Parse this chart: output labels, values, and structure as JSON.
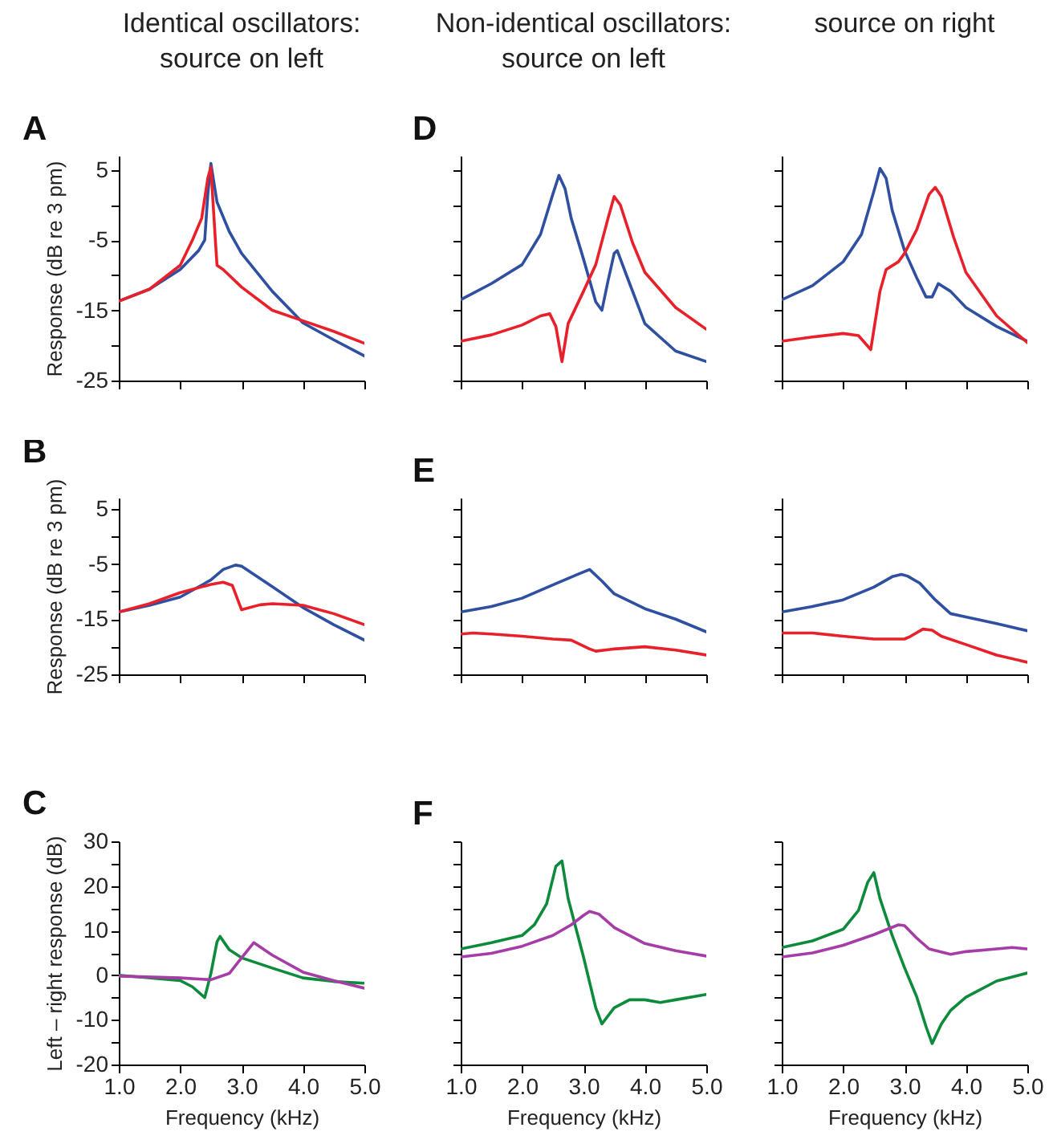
{
  "chart_data": [
    {
      "type": "line",
      "title": "A",
      "annotations": [
        "Identical oscillators:",
        "source on left"
      ],
      "ylabel": "Response (dB re 3 pm)",
      "tick_labels": "y",
      "xlim": [
        1,
        5
      ],
      "xticks": [
        {
          "value": 1,
          "label": null
        },
        {
          "value": 2,
          "label": null
        },
        {
          "value": 3,
          "label": null
        },
        {
          "value": 4,
          "label": null
        },
        {
          "value": 5,
          "label": null
        }
      ],
      "ylim": [
        -25,
        7
      ],
      "yticks": [
        5,
        {
          "value": 0,
          "label": null
        },
        -5,
        {
          "value": -10,
          "label": null
        },
        -15,
        {
          "value": -20,
          "label": null
        },
        -25
      ],
      "series": [
        {
          "color": "#2f4fa0",
          "x": [
            1,
            1.5,
            2,
            2.3,
            2.4,
            2.45,
            2.5,
            2.6,
            2.8,
            3,
            3.5,
            4,
            4.5,
            5
          ],
          "values": [
            -13.7,
            -12,
            -9.2,
            -6.5,
            -5,
            1.5,
            5.9,
            0.4,
            -3.8,
            -6.9,
            -12.3,
            -16.8,
            -19.2,
            -21.5
          ]
        },
        {
          "color": "#e8202a",
          "x": [
            1,
            1.5,
            2,
            2.2,
            2.35,
            2.45,
            2.5,
            2.57,
            2.6,
            2.7,
            3,
            3.5,
            4,
            4.5,
            5
          ],
          "values": [
            -13.7,
            -12,
            -8.6,
            -5,
            -1.9,
            3.8,
            5.4,
            -4.6,
            -8.6,
            -9.2,
            -11.7,
            -15,
            -16.5,
            -18,
            -19.7
          ]
        }
      ]
    },
    {
      "type": "line",
      "title": "D",
      "annotations": [
        "Non-identical oscillators:",
        "source on left"
      ],
      "tick_labels": false,
      "xlim": [
        1,
        5
      ],
      "xticks": [
        {
          "value": 1,
          "label": null
        },
        {
          "value": 2,
          "label": null
        },
        {
          "value": 3,
          "label": null
        },
        {
          "value": 4,
          "label": null
        },
        {
          "value": 5,
          "label": null
        }
      ],
      "ylim": [
        -25,
        7
      ],
      "yticks": [
        {
          "value": 5,
          "label": null
        },
        {
          "value": 0,
          "label": null
        },
        {
          "value": -5,
          "label": null
        },
        {
          "value": -10,
          "label": null
        },
        {
          "value": -15,
          "label": null
        },
        {
          "value": -20,
          "label": null
        },
        {
          "value": -25,
          "label": null
        }
      ],
      "series": [
        {
          "color": "#2f4fa0",
          "x": [
            1,
            1.5,
            2,
            2.3,
            2.5,
            2.6,
            2.7,
            2.8,
            3,
            3.2,
            3.3,
            3.4,
            3.5,
            3.55,
            3.7,
            4,
            4.5,
            5
          ],
          "values": [
            -13.5,
            -11.2,
            -8.5,
            -4.2,
            1.5,
            4.2,
            2.3,
            -1.9,
            -7.7,
            -13.8,
            -15,
            -10.8,
            -6.9,
            -6.5,
            -10,
            -16.9,
            -20.8,
            -22.3
          ]
        },
        {
          "color": "#e8202a",
          "x": [
            1,
            1.5,
            2,
            2.3,
            2.45,
            2.55,
            2.65,
            2.75,
            3,
            3.2,
            3.4,
            3.5,
            3.6,
            3.8,
            4,
            4.5,
            5
          ],
          "values": [
            -19.4,
            -18.5,
            -17.1,
            -15.8,
            -15.5,
            -17.3,
            -22.3,
            -16.9,
            -12.3,
            -8.5,
            -1.9,
            1.2,
            0,
            -5.4,
            -9.6,
            -14.6,
            -17.7
          ]
        }
      ]
    },
    {
      "type": "line",
      "annotations": [
        "source on right"
      ],
      "tick_labels": false,
      "xlim": [
        1,
        5
      ],
      "xticks": [
        {
          "value": 1,
          "label": null
        },
        {
          "value": 2,
          "label": null
        },
        {
          "value": 3,
          "label": null
        },
        {
          "value": 4,
          "label": null
        },
        {
          "value": 5,
          "label": null
        }
      ],
      "ylim": [
        -25,
        7
      ],
      "yticks": [
        {
          "value": 5,
          "label": null
        },
        {
          "value": 0,
          "label": null
        },
        {
          "value": -5,
          "label": null
        },
        {
          "value": -10,
          "label": null
        },
        {
          "value": -15,
          "label": null
        },
        {
          "value": -20,
          "label": null
        },
        {
          "value": -25,
          "label": null
        }
      ],
      "series": [
        {
          "color": "#2f4fa0",
          "x": [
            1,
            1.5,
            2,
            2.3,
            2.5,
            2.6,
            2.7,
            2.8,
            3,
            3.2,
            3.35,
            3.45,
            3.55,
            3.75,
            4,
            4.5,
            5
          ],
          "values": [
            -13.5,
            -11.5,
            -8.1,
            -4.2,
            1.9,
            5.2,
            3.8,
            -0.8,
            -6.5,
            -10.4,
            -13.1,
            -13.1,
            -11.2,
            -12.3,
            -14.6,
            -17.3,
            -19.4
          ]
        },
        {
          "color": "#e8202a",
          "x": [
            1,
            1.5,
            2,
            2.25,
            2.45,
            2.6,
            2.7,
            2.9,
            3,
            3.2,
            3.4,
            3.5,
            3.6,
            3.8,
            4,
            4.5,
            5
          ],
          "values": [
            -19.4,
            -18.8,
            -18.3,
            -18.6,
            -20.6,
            -12.3,
            -9.2,
            -8.1,
            -6.9,
            -3.5,
            1.5,
            2.5,
            1.2,
            -4.6,
            -9.6,
            -15.8,
            -19.6
          ]
        }
      ]
    },
    {
      "type": "line",
      "title": "B",
      "ylabel": "Response (dB re 3 pm)",
      "tick_labels": "y",
      "xlim": [
        1,
        5
      ],
      "xticks": [
        {
          "value": 1,
          "label": null
        },
        {
          "value": 2,
          "label": null
        },
        {
          "value": 3,
          "label": null
        },
        {
          "value": 4,
          "label": null
        },
        {
          "value": 5,
          "label": null
        }
      ],
      "ylim": [
        -25,
        7
      ],
      "yticks": [
        5,
        {
          "value": 0,
          "label": null
        },
        -5,
        {
          "value": -10,
          "label": null
        },
        -15,
        {
          "value": -20,
          "label": null
        },
        -25
      ],
      "series": [
        {
          "color": "#2f4fa0",
          "x": [
            1,
            1.5,
            2,
            2.5,
            2.7,
            2.9,
            3,
            3.5,
            4,
            4.5,
            5
          ],
          "values": [
            -13.7,
            -12.5,
            -11,
            -7.9,
            -6,
            -5.2,
            -5.4,
            -9.1,
            -12.9,
            -16,
            -18.8
          ]
        },
        {
          "color": "#e8202a",
          "x": [
            1,
            1.5,
            2,
            2.5,
            2.7,
            2.85,
            3,
            3.3,
            3.5,
            4,
            4.5,
            5
          ],
          "values": [
            -13.7,
            -12.2,
            -10.2,
            -8.7,
            -8.3,
            -8.9,
            -13.3,
            -12.4,
            -12.2,
            -12.5,
            -14,
            -16
          ]
        }
      ]
    },
    {
      "type": "line",
      "title": "E",
      "tick_labels": false,
      "xlim": [
        1,
        5
      ],
      "xticks": [
        {
          "value": 1,
          "label": null
        },
        {
          "value": 2,
          "label": null
        },
        {
          "value": 3,
          "label": null
        },
        {
          "value": 4,
          "label": null
        },
        {
          "value": 5,
          "label": null
        }
      ],
      "ylim": [
        -25,
        7
      ],
      "yticks": [
        {
          "value": 5,
          "label": null
        },
        {
          "value": 0,
          "label": null
        },
        {
          "value": -5,
          "label": null
        },
        {
          "value": -10,
          "label": null
        },
        {
          "value": -15,
          "label": null
        },
        {
          "value": -20,
          "label": null
        },
        {
          "value": -25,
          "label": null
        }
      ],
      "series": [
        {
          "color": "#2f4fa0",
          "x": [
            1,
            1.5,
            2,
            2.5,
            2.9,
            3.1,
            3.3,
            3.5,
            4,
            4.5,
            5
          ],
          "values": [
            -13.7,
            -12.7,
            -11.2,
            -8.8,
            -6.9,
            -6,
            -8.1,
            -10.4,
            -13.1,
            -15,
            -17.3
          ]
        },
        {
          "color": "#e8202a",
          "x": [
            1,
            1.2,
            1.5,
            2,
            2.5,
            2.8,
            3.1,
            3.2,
            3.5,
            4,
            4.5,
            5
          ],
          "values": [
            -17.7,
            -17.5,
            -17.7,
            -18.1,
            -18.6,
            -18.8,
            -20.4,
            -20.8,
            -20.4,
            -20,
            -20.6,
            -21.5
          ]
        }
      ]
    },
    {
      "type": "line",
      "tick_labels": false,
      "xlim": [
        1,
        5
      ],
      "xticks": [
        {
          "value": 1,
          "label": null
        },
        {
          "value": 2,
          "label": null
        },
        {
          "value": 3,
          "label": null
        },
        {
          "value": 4,
          "label": null
        },
        {
          "value": 5,
          "label": null
        }
      ],
      "ylim": [
        -25,
        7
      ],
      "yticks": [
        {
          "value": 5,
          "label": null
        },
        {
          "value": 0,
          "label": null
        },
        {
          "value": -5,
          "label": null
        },
        {
          "value": -10,
          "label": null
        },
        {
          "value": -15,
          "label": null
        },
        {
          "value": -20,
          "label": null
        },
        {
          "value": -25,
          "label": null
        }
      ],
      "series": [
        {
          "color": "#2f4fa0",
          "x": [
            1,
            1.5,
            2,
            2.5,
            2.8,
            2.95,
            3.05,
            3.25,
            3.5,
            3.75,
            4,
            4.5,
            5
          ],
          "values": [
            -13.7,
            -12.7,
            -11.5,
            -9.2,
            -7.3,
            -6.9,
            -7.2,
            -8.5,
            -11.5,
            -14,
            -14.6,
            -15.8,
            -17.1
          ]
        },
        {
          "color": "#e8202a",
          "x": [
            1,
            1.5,
            2,
            2.5,
            3,
            3.1,
            3.3,
            3.45,
            3.6,
            4,
            4.5,
            5
          ],
          "values": [
            -17.5,
            -17.5,
            -18.1,
            -18.6,
            -18.6,
            -18.1,
            -16.8,
            -17,
            -18.1,
            -19.6,
            -21.5,
            -22.8
          ]
        }
      ]
    },
    {
      "type": "line",
      "title": "C",
      "ylabel": "Left – right response (dB)",
      "xlabel": "Frequency (kHz)",
      "xlim": [
        1,
        5
      ],
      "xticks": [
        {
          "value": 1,
          "label": "1.0"
        },
        {
          "value": 2,
          "label": "2.0"
        },
        {
          "value": 3,
          "label": "3.0"
        },
        {
          "value": 4,
          "label": "4.0"
        },
        {
          "value": 5,
          "label": "5.0"
        }
      ],
      "ylim": [
        -20,
        30
      ],
      "yticks": [
        30,
        {
          "value": 25,
          "label": null
        },
        20,
        {
          "value": 15,
          "label": null
        },
        10,
        {
          "value": 5,
          "label": null
        },
        0,
        {
          "value": -5,
          "label": null
        },
        -10,
        {
          "value": -15,
          "label": null
        },
        -20
      ],
      "series": [
        {
          "color": "#0d8a3c",
          "x": [
            1,
            2,
            2.2,
            2.4,
            2.5,
            2.6,
            2.65,
            2.8,
            3,
            3.5,
            4,
            4.5,
            5
          ],
          "values": [
            0,
            -1.2,
            -2.6,
            -5,
            0.4,
            7.5,
            8.7,
            5.7,
            3.9,
            1.6,
            -0.6,
            -1.4,
            -1.8
          ]
        },
        {
          "color": "#a63ca6",
          "x": [
            1,
            2,
            2.5,
            2.8,
            3,
            3.2,
            3.5,
            4,
            4.5,
            5
          ],
          "values": [
            -0.2,
            -0.6,
            -1,
            0.4,
            3.9,
            7.3,
            4.5,
            0.7,
            -1.2,
            -2.9
          ]
        }
      ]
    },
    {
      "type": "line",
      "title": "F",
      "xlabel": "Frequency (kHz)",
      "tick_labels": "x",
      "xlim": [
        1,
        5
      ],
      "xticks": [
        {
          "value": 1,
          "label": "1.0"
        },
        {
          "value": 2,
          "label": "2.0"
        },
        {
          "value": 3,
          "label": "3.0"
        },
        {
          "value": 4,
          "label": "4.0"
        },
        {
          "value": 5,
          "label": "5.0"
        }
      ],
      "ylim": [
        -20,
        30
      ],
      "yticks": [
        {
          "value": 30,
          "label": null
        },
        {
          "value": 25,
          "label": null
        },
        {
          "value": 20,
          "label": null
        },
        {
          "value": 15,
          "label": null
        },
        {
          "value": 10,
          "label": null
        },
        {
          "value": 5,
          "label": null
        },
        {
          "value": 0,
          "label": null
        },
        {
          "value": -5,
          "label": null
        },
        {
          "value": -10,
          "label": null
        },
        {
          "value": -15,
          "label": null
        },
        {
          "value": -20,
          "label": null
        }
      ],
      "series": [
        {
          "color": "#0d8a3c",
          "x": [
            1,
            1.5,
            2,
            2.2,
            2.4,
            2.55,
            2.65,
            2.75,
            3,
            3.2,
            3.3,
            3.5,
            3.75,
            4,
            4.25,
            4.5,
            5
          ],
          "values": [
            5.9,
            7.3,
            8.9,
            11.3,
            16,
            24.4,
            25.6,
            17.2,
            4.1,
            -7.3,
            -10.9,
            -7.3,
            -5.5,
            -5.5,
            -6.1,
            -5.5,
            -4.3
          ]
        },
        {
          "color": "#a63ca6",
          "x": [
            1,
            1.5,
            2,
            2.5,
            2.8,
            3,
            3.1,
            3.25,
            3.5,
            4,
            4.5,
            5
          ],
          "values": [
            4.1,
            4.9,
            6.5,
            8.9,
            11.3,
            13.4,
            14.3,
            13.7,
            10.7,
            7.1,
            5.5,
            4.3
          ]
        }
      ]
    },
    {
      "type": "line",
      "xlabel": "Frequency (kHz)",
      "tick_labels": "x",
      "xlim": [
        1,
        5
      ],
      "xticks": [
        {
          "value": 1,
          "label": "1.0"
        },
        {
          "value": 2,
          "label": "2.0"
        },
        {
          "value": 3,
          "label": "3.0"
        },
        {
          "value": 4,
          "label": "4.0"
        },
        {
          "value": 5,
          "label": "5.0"
        }
      ],
      "ylim": [
        -20,
        30
      ],
      "yticks": [
        {
          "value": 30,
          "label": null
        },
        {
          "value": 25,
          "label": null
        },
        {
          "value": 20,
          "label": null
        },
        {
          "value": 15,
          "label": null
        },
        {
          "value": 10,
          "label": null
        },
        {
          "value": 5,
          "label": null
        },
        {
          "value": 0,
          "label": null
        },
        {
          "value": -5,
          "label": null
        },
        {
          "value": -10,
          "label": null
        },
        {
          "value": -15,
          "label": null
        },
        {
          "value": -20,
          "label": null
        }
      ],
      "series": [
        {
          "color": "#0d8a3c",
          "x": [
            1,
            1.5,
            2,
            2.25,
            2.4,
            2.5,
            2.6,
            2.8,
            3,
            3.2,
            3.35,
            3.45,
            3.6,
            3.75,
            4,
            4.5,
            5
          ],
          "values": [
            6.2,
            7.7,
            10.3,
            14.5,
            20.8,
            23,
            17.2,
            8.9,
            1.7,
            -4.9,
            -11.5,
            -15.3,
            -10.9,
            -7.9,
            -4.9,
            -1.3,
            0.5
          ]
        },
        {
          "color": "#a63ca6",
          "x": [
            1,
            1.5,
            2,
            2.5,
            2.9,
            3,
            3.2,
            3.4,
            3.75,
            4,
            4.5,
            4.75,
            5
          ],
          "values": [
            4.1,
            5,
            6.7,
            9.1,
            11.3,
            11.1,
            8.3,
            5.9,
            4.7,
            5.3,
            5.9,
            6.2,
            5.9
          ]
        }
      ]
    }
  ]
}
